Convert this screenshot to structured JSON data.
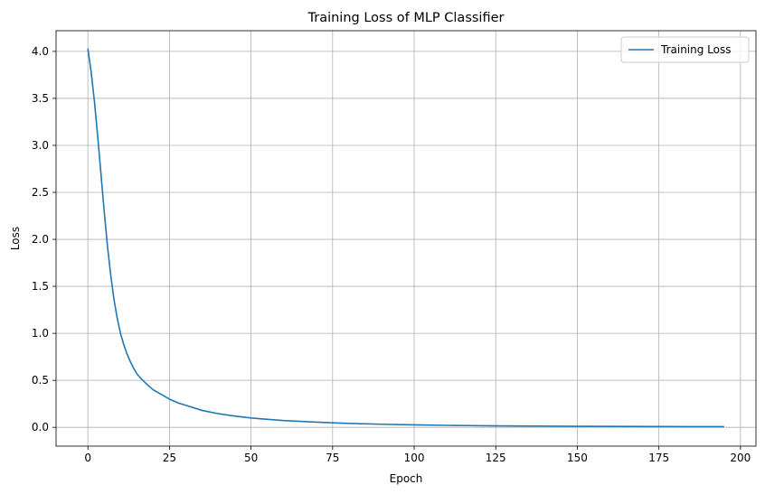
{
  "chart_data": {
    "type": "line",
    "title": "Training Loss of MLP Classifier",
    "xlabel": "Epoch",
    "ylabel": "Loss",
    "xlim": [
      -9.75,
      204.75
    ],
    "ylim": [
      -0.2,
      4.22
    ],
    "xticks": [
      0,
      25,
      50,
      75,
      100,
      125,
      150,
      175,
      200
    ],
    "yticks": [
      0.0,
      0.5,
      1.0,
      1.5,
      2.0,
      2.5,
      3.0,
      3.5,
      4.0
    ],
    "grid": true,
    "legend_position": "top-right",
    "series": [
      {
        "name": "Training Loss",
        "color": "#1f77b4",
        "x": [
          0,
          1,
          2,
          3,
          4,
          5,
          6,
          7,
          8,
          9,
          10,
          11,
          12,
          13,
          14,
          15,
          16,
          18,
          20,
          22,
          25,
          28,
          30,
          35,
          40,
          45,
          50,
          55,
          60,
          70,
          75,
          80,
          90,
          100,
          110,
          125,
          150,
          175,
          195
        ],
        "y": [
          4.03,
          3.78,
          3.47,
          3.1,
          2.7,
          2.3,
          1.93,
          1.62,
          1.36,
          1.16,
          1.0,
          0.88,
          0.78,
          0.7,
          0.63,
          0.57,
          0.53,
          0.46,
          0.4,
          0.36,
          0.3,
          0.255,
          0.235,
          0.18,
          0.145,
          0.12,
          0.1,
          0.085,
          0.072,
          0.055,
          0.048,
          0.042,
          0.033,
          0.026,
          0.021,
          0.016,
          0.011,
          0.008,
          0.007
        ]
      }
    ]
  }
}
